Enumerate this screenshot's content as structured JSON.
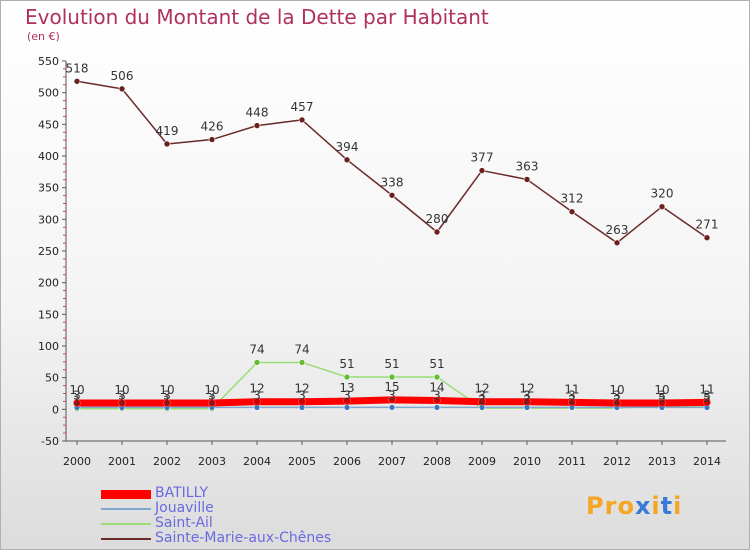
{
  "title": "Evolution du Montant de la Dette par Habitant",
  "unit": "(en €)",
  "logo": {
    "text": "Proxiti",
    "colors": [
      "#f5a623",
      "#f5a623",
      "#f5a623",
      "#3a7bd5",
      "#f5a623",
      "#3a7bd5",
      "#f5a623"
    ]
  },
  "chart_data": {
    "type": "line",
    "title": "Evolution du Montant de la Dette par Habitant",
    "ylabel": "(en €)",
    "xlabel": "",
    "ylim": [
      -50,
      550
    ],
    "yticks": [
      -50,
      0,
      50,
      100,
      150,
      200,
      250,
      300,
      350,
      400,
      450,
      500,
      550
    ],
    "grid": false,
    "legend_position": "bottom-left",
    "x": [
      "2000",
      "2001",
      "2002",
      "2003",
      "2004",
      "2005",
      "2006",
      "2007",
      "2008",
      "2009",
      "2010",
      "2011",
      "2012",
      "2013",
      "2014"
    ],
    "series": [
      {
        "name": "BATILLY",
        "color": "#ff0000",
        "marker": "#d00000",
        "thick": true,
        "values": [
          10,
          10,
          10,
          10,
          12,
          12,
          13,
          15,
          14,
          12,
          12,
          11,
          10,
          10,
          11
        ],
        "labels": [
          "10",
          "10",
          "10",
          "10",
          "12",
          "12",
          "13",
          "15",
          "14",
          "12",
          "12",
          "11",
          "10",
          "10",
          "11"
        ]
      },
      {
        "name": "Jouaville",
        "color": "#7fa7d0",
        "marker": "#3a78c0",
        "thick": false,
        "values": [
          3,
          3,
          3,
          3,
          3,
          3,
          3,
          3,
          3,
          3,
          3,
          3,
          3,
          3,
          3
        ],
        "labels": [
          "3",
          "3",
          "3",
          "3",
          "3",
          "3",
          "3",
          "3",
          "3",
          "3",
          "3",
          "3",
          "3",
          "3",
          "3"
        ]
      },
      {
        "name": "Saint-Ail",
        "color": "#99dd77",
        "marker": "#66bb33",
        "thick": false,
        "values": [
          1,
          1,
          1,
          1,
          74,
          74,
          51,
          51,
          51,
          2,
          2,
          2,
          2,
          5,
          5
        ],
        "labels": [
          "1",
          "1",
          "1",
          "1",
          "74",
          "74",
          "51",
          "51",
          "51",
          "2",
          "2",
          "2",
          "2",
          "5",
          "5"
        ]
      },
      {
        "name": "Sainte-Marie-aux-Chênes",
        "color": "#6b2a2a",
        "marker": "#6b1f1f",
        "thick": false,
        "values": [
          518,
          506,
          419,
          426,
          448,
          457,
          394,
          338,
          280,
          377,
          363,
          312,
          263,
          320,
          271
        ],
        "labels": [
          "518",
          "506",
          "419",
          "426",
          "448",
          "457",
          "394",
          "338",
          "280",
          "377",
          "363",
          "312",
          "263",
          "320",
          "271"
        ]
      }
    ]
  }
}
